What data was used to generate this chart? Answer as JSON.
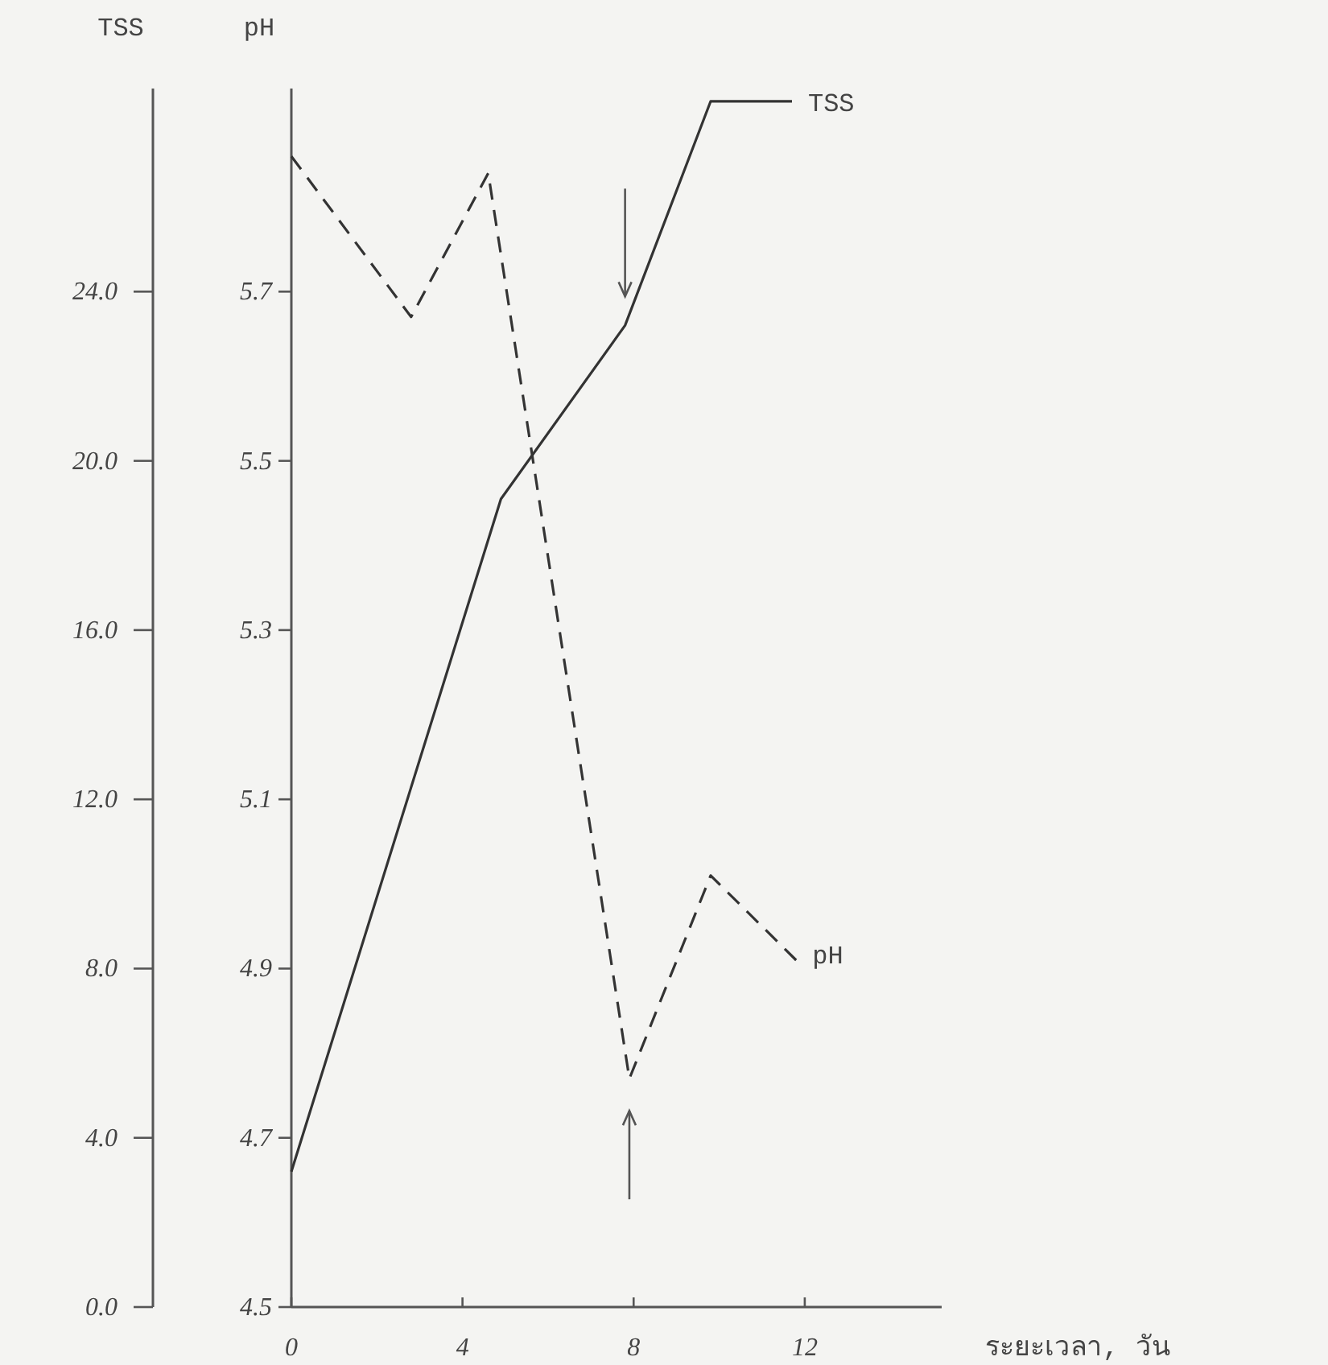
{
  "chart_data": {
    "type": "line",
    "xlabel": "ระยะเวลา, วัน",
    "ylabel": "pH",
    "y2label": "TSS",
    "xlim": [
      0,
      15.2
    ],
    "xticks": [
      0,
      4,
      8,
      12
    ],
    "ylim": [
      4.5,
      5.94
    ],
    "yticks": [
      4.5,
      4.7,
      4.9,
      5.1,
      5.3,
      5.5,
      5.7
    ],
    "y2lim": [
      0,
      28.8
    ],
    "y2ticks": [
      {
        "value": 0,
        "label": "0.0"
      },
      {
        "value": 4,
        "label": "4.0"
      },
      {
        "value": 8,
        "label": "8.0"
      },
      {
        "value": 12,
        "label": "12.0"
      },
      {
        "value": 16,
        "label": "16.0"
      },
      {
        "value": 20,
        "label": "20.0"
      },
      {
        "value": 24,
        "label": "24.0"
      }
    ],
    "series": [
      {
        "name": "TSS",
        "color": "#333333",
        "axis": "y2",
        "line_style": "solid",
        "x": [
          0,
          4.9,
          7.8,
          9.8,
          11.7
        ],
        "values": [
          3.2,
          19.1,
          23.2,
          28.5,
          28.5
        ]
      },
      {
        "name": "pH",
        "color": "#333333",
        "axis": "y",
        "line_style": "dashed",
        "x": [
          0,
          2.8,
          4.6,
          7.9,
          9.8,
          11.8
        ],
        "values": [
          5.86,
          5.67,
          5.84,
          4.77,
          5.01,
          4.91
        ]
      }
    ]
  }
}
